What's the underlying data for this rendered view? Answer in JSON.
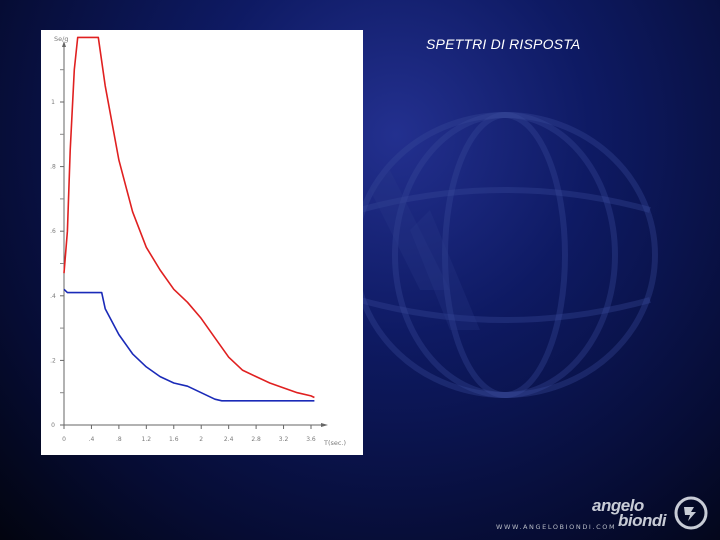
{
  "slide": {
    "title": "SPETTRI DI RISPOSTA"
  },
  "logo": {
    "word1": "angelo",
    "word2": "biondi",
    "url": "WWW.ANGELOBIONDI.COM"
  },
  "colors": {
    "background": "#0b1550",
    "series_red": "#e02020",
    "series_blue": "#1a2ab8"
  },
  "chart_data": {
    "type": "line",
    "ylabel": "Se/g",
    "xlabel": "T(sec.)",
    "xlim": [
      0,
      3.8
    ],
    "ylim": [
      0,
      1.25
    ],
    "x_ticks": [
      "0",
      ".4",
      ".8",
      "1.2",
      "1.6",
      "2",
      "2.4",
      "2.8",
      "3.2",
      "3.6"
    ],
    "y_ticks": [
      "0",
      ".2",
      ".4",
      ".6",
      ".8",
      "1"
    ],
    "grid": false,
    "series": [
      {
        "color": "#e02020",
        "points": [
          [
            0.0,
            0.47
          ],
          [
            0.05,
            0.6
          ],
          [
            0.09,
            0.85
          ],
          [
            0.15,
            1.1
          ],
          [
            0.2,
            1.2
          ],
          [
            0.5,
            1.2
          ],
          [
            0.6,
            1.05
          ],
          [
            0.8,
            0.82
          ],
          [
            1.0,
            0.66
          ],
          [
            1.2,
            0.55
          ],
          [
            1.4,
            0.48
          ],
          [
            1.6,
            0.42
          ],
          [
            1.8,
            0.38
          ],
          [
            2.0,
            0.33
          ],
          [
            2.2,
            0.27
          ],
          [
            2.4,
            0.21
          ],
          [
            2.6,
            0.17
          ],
          [
            2.8,
            0.15
          ],
          [
            3.0,
            0.13
          ],
          [
            3.2,
            0.115
          ],
          [
            3.4,
            0.1
          ],
          [
            3.6,
            0.09
          ],
          [
            3.65,
            0.085
          ]
        ]
      },
      {
        "color": "#1a2ab8",
        "points": [
          [
            0.0,
            0.42
          ],
          [
            0.05,
            0.41
          ],
          [
            0.3,
            0.41
          ],
          [
            0.55,
            0.41
          ],
          [
            0.6,
            0.36
          ],
          [
            0.8,
            0.28
          ],
          [
            1.0,
            0.22
          ],
          [
            1.2,
            0.18
          ],
          [
            1.4,
            0.15
          ],
          [
            1.6,
            0.13
          ],
          [
            1.8,
            0.12
          ],
          [
            2.0,
            0.1
          ],
          [
            2.2,
            0.08
          ],
          [
            2.3,
            0.075
          ],
          [
            2.6,
            0.075
          ],
          [
            3.0,
            0.075
          ],
          [
            3.4,
            0.075
          ],
          [
            3.65,
            0.075
          ]
        ]
      }
    ]
  }
}
